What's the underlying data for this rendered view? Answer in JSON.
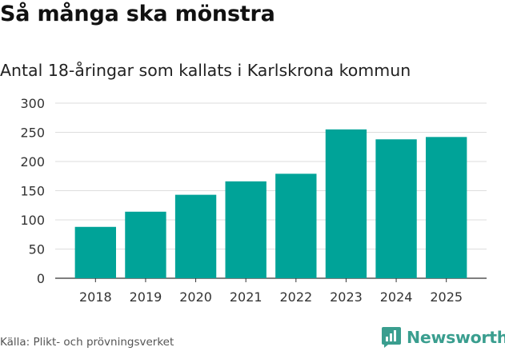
{
  "title": "Så många ska mönstra",
  "subtitle": "Antal 18-åringar som kallats i Karlskrona kommun",
  "source": "Källa: Plikt- och prövningsverket",
  "brand": {
    "name": "Newsworthy",
    "icon": "newsworthy-logo-icon",
    "color": "#3a9e8f"
  },
  "chart_data": {
    "type": "bar",
    "categories": [
      "2018",
      "2019",
      "2020",
      "2021",
      "2022",
      "2023",
      "2024",
      "2025"
    ],
    "values": [
      88,
      114,
      143,
      166,
      179,
      255,
      238,
      242
    ],
    "ylim": [
      0,
      300
    ],
    "yticks": [
      0,
      50,
      100,
      150,
      200,
      250,
      300
    ],
    "grid": true,
    "bar_color": "#00a398"
  }
}
